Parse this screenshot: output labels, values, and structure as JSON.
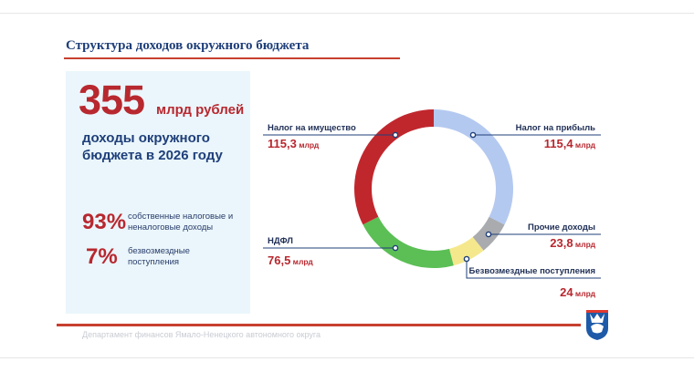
{
  "title": "Структура доходов окружного бюджета",
  "summary": {
    "total_value": "355",
    "total_unit": "млрд рублей",
    "total_desc": "доходы окружного бюджета в 2026 году",
    "own_pct": "93%",
    "own_desc": "собственные налоговые и неналоговые доходы",
    "grant_pct": "7%",
    "grant_desc": "безвозмездные поступления"
  },
  "chart_data": {
    "type": "pie",
    "unit": "млрд",
    "slices": [
      {
        "name": "Налог на прибыль",
        "value": 115.4,
        "label": "115,4",
        "color": "#b4c9f0"
      },
      {
        "name": "Прочие доходы",
        "value": 23.8,
        "label": "23,8",
        "color": "#a9abae"
      },
      {
        "name": "Безвозмездные поступления",
        "value": 24,
        "label": "24",
        "color": "#f5e88c"
      },
      {
        "name": "НДФЛ",
        "value": 76.5,
        "label": "76,5",
        "color": "#5bbf55"
      },
      {
        "name": "Налог на имущество",
        "value": 115.3,
        "label": "115,3",
        "color": "#c0272d"
      }
    ]
  },
  "footer": {
    "text": "Департамент финансов Ямало-Ненецкого автономного округа",
    "logo_icon": "coat-of-arms-icon"
  },
  "colors": {
    "accent_red": "#c8402f",
    "title_blue": "#1f3f7a",
    "value_red": "#b8282f"
  }
}
